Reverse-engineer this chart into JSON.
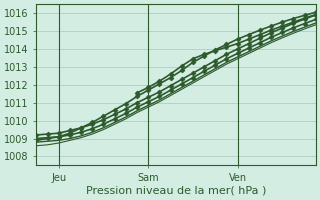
{
  "background_color": "#d4ede3",
  "plot_bg_color": "#d4ede3",
  "grid_color": "#9bbfb0",
  "line_color": "#2d5a2d",
  "axis_color": "#2d5a2d",
  "xlabel": "Pression niveau de la mer( hPa )",
  "ylim": [
    1007.5,
    1016.5
  ],
  "yticks": [
    1008,
    1009,
    1010,
    1011,
    1012,
    1013,
    1014,
    1015,
    1016
  ],
  "day_labels": [
    "Jeu",
    "Sam",
    "Ven"
  ],
  "day_positions": [
    0.08,
    0.4,
    0.72
  ],
  "lines": [
    {
      "x": [
        0.0,
        0.04,
        0.08,
        0.12,
        0.16,
        0.2,
        0.24,
        0.28,
        0.32,
        0.36,
        0.4,
        0.44,
        0.48,
        0.52,
        0.56,
        0.6,
        0.64,
        0.68,
        0.72,
        0.76,
        0.8,
        0.84,
        0.88,
        0.92,
        0.96,
        1.0
      ],
      "y": [
        1008.8,
        1008.85,
        1008.9,
        1009.0,
        1009.15,
        1009.35,
        1009.6,
        1009.9,
        1010.2,
        1010.55,
        1010.85,
        1011.15,
        1011.5,
        1011.85,
        1012.2,
        1012.55,
        1012.9,
        1013.25,
        1013.55,
        1013.85,
        1014.15,
        1014.45,
        1014.72,
        1014.98,
        1015.22,
        1015.45
      ],
      "marker": null,
      "lw": 1.0,
      "ms": 0
    },
    {
      "x": [
        0.0,
        0.04,
        0.08,
        0.12,
        0.16,
        0.2,
        0.24,
        0.28,
        0.32,
        0.36,
        0.4,
        0.44,
        0.48,
        0.52,
        0.56,
        0.6,
        0.64,
        0.68,
        0.72,
        0.76,
        0.8,
        0.84,
        0.88,
        0.92,
        0.96,
        1.0
      ],
      "y": [
        1008.6,
        1008.65,
        1008.75,
        1008.9,
        1009.05,
        1009.25,
        1009.5,
        1009.8,
        1010.1,
        1010.45,
        1010.75,
        1011.05,
        1011.4,
        1011.75,
        1012.1,
        1012.45,
        1012.8,
        1013.15,
        1013.45,
        1013.75,
        1014.05,
        1014.35,
        1014.62,
        1014.88,
        1015.12,
        1015.35
      ],
      "marker": null,
      "lw": 0.8,
      "ms": 0
    },
    {
      "x": [
        0.0,
        0.04,
        0.08,
        0.12,
        0.16,
        0.2,
        0.24,
        0.28,
        0.32,
        0.36,
        0.4,
        0.44,
        0.48,
        0.52,
        0.56,
        0.6,
        0.64,
        0.68,
        0.72,
        0.76,
        0.8,
        0.84,
        0.88,
        0.92,
        0.96,
        1.0
      ],
      "y": [
        1009.0,
        1009.05,
        1009.1,
        1009.2,
        1009.35,
        1009.55,
        1009.8,
        1010.1,
        1010.4,
        1010.75,
        1011.05,
        1011.35,
        1011.7,
        1012.05,
        1012.4,
        1012.75,
        1013.1,
        1013.45,
        1013.75,
        1014.05,
        1014.35,
        1014.65,
        1014.92,
        1015.18,
        1015.42,
        1015.65
      ],
      "marker": "D",
      "lw": 1.2,
      "ms": 2.5
    },
    {
      "x": [
        0.0,
        0.08,
        0.12,
        0.16,
        0.2,
        0.24,
        0.28,
        0.32,
        0.36,
        0.4,
        0.44,
        0.48,
        0.52,
        0.56,
        0.6,
        0.64,
        0.68,
        0.72,
        0.76,
        0.8,
        0.84,
        0.88,
        0.92,
        0.96,
        1.0
      ],
      "y": [
        1008.9,
        1009.1,
        1009.3,
        1009.6,
        1009.9,
        1010.25,
        1010.6,
        1010.95,
        1011.35,
        1011.7,
        1012.05,
        1012.4,
        1012.8,
        1013.25,
        1013.6,
        1013.95,
        1014.25,
        1014.55,
        1014.8,
        1015.05,
        1015.28,
        1015.5,
        1015.7,
        1015.88,
        1016.05
      ],
      "marker": "D",
      "lw": 1.2,
      "ms": 2.5
    },
    {
      "x": [
        0.36,
        0.4,
        0.44,
        0.48,
        0.52,
        0.56,
        0.6,
        0.64,
        0.68,
        0.72,
        0.76,
        0.8,
        0.84,
        0.88,
        0.92,
        0.96,
        1.0
      ],
      "y": [
        1011.55,
        1011.85,
        1012.2,
        1012.6,
        1013.05,
        1013.45,
        1013.7,
        1013.9,
        1014.1,
        1014.3,
        1014.55,
        1014.8,
        1015.05,
        1015.28,
        1015.5,
        1015.72,
        1015.92
      ],
      "marker": "D",
      "lw": 1.2,
      "ms": 2.5
    },
    {
      "x": [
        0.0,
        0.04,
        0.08,
        0.12,
        0.16,
        0.2,
        0.24,
        0.28,
        0.32,
        0.36,
        0.4,
        0.44,
        0.48,
        0.52,
        0.56,
        0.6,
        0.64,
        0.68,
        0.72,
        0.76,
        0.8,
        0.84,
        0.88,
        0.92,
        0.96,
        1.0
      ],
      "y": [
        1009.2,
        1009.25,
        1009.3,
        1009.45,
        1009.6,
        1009.8,
        1010.05,
        1010.35,
        1010.65,
        1011.0,
        1011.3,
        1011.6,
        1011.95,
        1012.3,
        1012.65,
        1013.0,
        1013.35,
        1013.7,
        1014.0,
        1014.3,
        1014.6,
        1014.9,
        1015.17,
        1015.43,
        1015.67,
        1015.9
      ],
      "marker": "D",
      "lw": 1.2,
      "ms": 2.5
    }
  ],
  "vline_positions": [
    0.08,
    0.4,
    0.72
  ],
  "vline_color": "#2d5a2d",
  "tick_color": "#2d5a2d",
  "label_fontsize": 7,
  "xlabel_fontsize": 8
}
